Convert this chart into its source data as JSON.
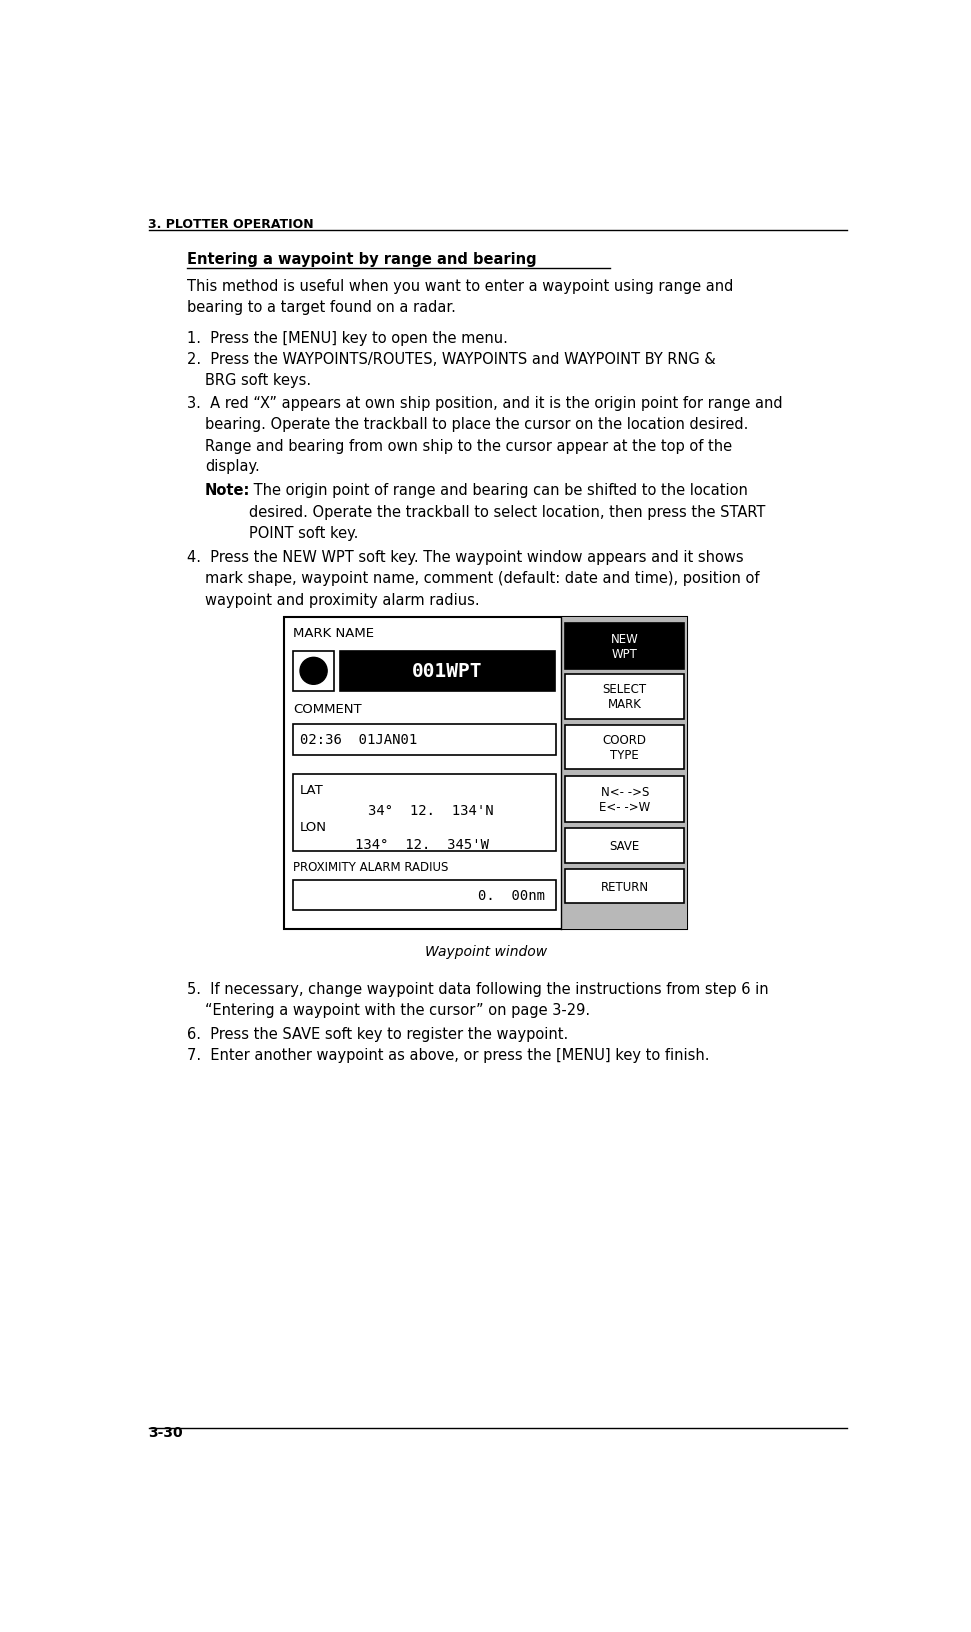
{
  "page_header": "3. PLOTTER OPERATION",
  "page_footer": "3-30",
  "section_title": "Entering a waypoint by range and bearing",
  "background_color": "#ffffff",
  "text_color": "#000000",
  "header_color": "#000000",
  "diagram": {
    "mark_name_label": "MARK NAME",
    "name_value": "001WPT",
    "comment_label": "COMMENT",
    "comment_value": "02:36  01JAN01",
    "lat_label": "LAT",
    "lat_value": "34°  12.  134'N",
    "lon_label": "LON",
    "lon_value": "134°  12.  345'W",
    "prox_label": "PROXIMITY ALARM RADIUS",
    "prox_value": "0.  00nm",
    "soft_keys": [
      "NEW\nWPT",
      "SELECT\nMARK",
      "COORD\nTYPE",
      "N<- ->S\nE<- ->W",
      "SAVE",
      "RETURN"
    ],
    "soft_key_active": 0
  }
}
